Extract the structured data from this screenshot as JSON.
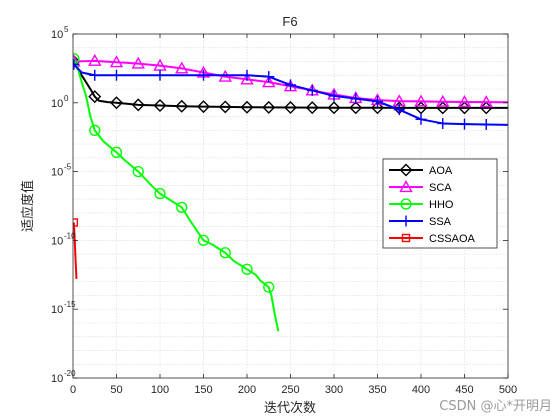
{
  "watermark": "CSDN @心*开明月",
  "chart_data": {
    "type": "line",
    "title": "F6",
    "xlabel": "迭代次数",
    "ylabel": "适应度值",
    "xlim": [
      0,
      500
    ],
    "ylim_log10": [
      -20,
      5
    ],
    "yscale": "log",
    "xticks": [
      0,
      50,
      100,
      150,
      200,
      250,
      300,
      350,
      400,
      450,
      500
    ],
    "yticks_exp": [
      -20,
      -15,
      -10,
      -5,
      0,
      5
    ],
    "ytick_base": "10",
    "grid": true,
    "legend_position": "right-middle",
    "series": [
      {
        "name": "AOA",
        "color": "#000000",
        "marker": "diamond",
        "marker_every": 25,
        "points": [
          [
            1,
            3
          ],
          [
            5,
            2.5
          ],
          [
            10,
            2.0
          ],
          [
            15,
            1.5
          ],
          [
            20,
            1.0
          ],
          [
            25,
            0.45
          ],
          [
            30,
            0.15
          ],
          [
            40,
            0.05
          ],
          [
            50,
            0.0
          ],
          [
            75,
            -0.15
          ],
          [
            100,
            -0.2
          ],
          [
            125,
            -0.25
          ],
          [
            150,
            -0.28
          ],
          [
            175,
            -0.3
          ],
          [
            200,
            -0.32
          ],
          [
            225,
            -0.33
          ],
          [
            250,
            -0.34
          ],
          [
            275,
            -0.35
          ],
          [
            300,
            -0.36
          ],
          [
            325,
            -0.36
          ],
          [
            350,
            -0.36
          ],
          [
            375,
            -0.37
          ],
          [
            400,
            -0.37
          ],
          [
            425,
            -0.37
          ],
          [
            450,
            -0.37
          ],
          [
            475,
            -0.37
          ],
          [
            500,
            -0.37
          ]
        ]
      },
      {
        "name": "SCA",
        "color": "#ff00ff",
        "marker": "triangle",
        "marker_every": 25,
        "points": [
          [
            1,
            3
          ],
          [
            25,
            3.05
          ],
          [
            50,
            2.95
          ],
          [
            75,
            2.85
          ],
          [
            100,
            2.7
          ],
          [
            125,
            2.5
          ],
          [
            150,
            2.2
          ],
          [
            175,
            1.9
          ],
          [
            200,
            1.7
          ],
          [
            225,
            1.5
          ],
          [
            250,
            1.2
          ],
          [
            275,
            0.9
          ],
          [
            300,
            0.6
          ],
          [
            325,
            0.35
          ],
          [
            350,
            0.2
          ],
          [
            375,
            0.12
          ],
          [
            400,
            0.1
          ],
          [
            425,
            0.08
          ],
          [
            450,
            0.06
          ],
          [
            475,
            0.05
          ],
          [
            500,
            0.04
          ]
        ]
      },
      {
        "name": "HHO",
        "color": "#00ff00",
        "marker": "circle",
        "marker_every": 25,
        "points": [
          [
            1,
            3.2
          ],
          [
            5,
            2.6
          ],
          [
            10,
            1.5
          ],
          [
            15,
            0.5
          ],
          [
            20,
            -1.0
          ],
          [
            25,
            -2.0
          ],
          [
            35,
            -2.8
          ],
          [
            50,
            -3.6
          ],
          [
            60,
            -4.2
          ],
          [
            75,
            -5.0
          ],
          [
            90,
            -6.0
          ],
          [
            100,
            -6.6
          ],
          [
            110,
            -7.0
          ],
          [
            125,
            -7.6
          ],
          [
            135,
            -8.6
          ],
          [
            150,
            -10.0
          ],
          [
            160,
            -10.3
          ],
          [
            175,
            -10.9
          ],
          [
            185,
            -11.5
          ],
          [
            200,
            -12.1
          ],
          [
            210,
            -12.5
          ],
          [
            215,
            -12.9
          ],
          [
            225,
            -13.4
          ],
          [
            228,
            -14.0
          ],
          [
            232,
            -15.4
          ],
          [
            236,
            -16.6
          ]
        ]
      },
      {
        "name": "SSA",
        "color": "#0000ff",
        "marker": "plus",
        "marker_every": 25,
        "points": [
          [
            1,
            2.8
          ],
          [
            10,
            2.2
          ],
          [
            25,
            2.0
          ],
          [
            50,
            2.0
          ],
          [
            100,
            2.0
          ],
          [
            150,
            2.0
          ],
          [
            200,
            2.0
          ],
          [
            225,
            1.9
          ],
          [
            250,
            1.3
          ],
          [
            275,
            0.9
          ],
          [
            300,
            0.5
          ],
          [
            325,
            0.3
          ],
          [
            350,
            0.1
          ],
          [
            375,
            -0.5
          ],
          [
            400,
            -1.2
          ],
          [
            425,
            -1.5
          ],
          [
            450,
            -1.55
          ],
          [
            475,
            -1.58
          ],
          [
            500,
            -1.6
          ]
        ]
      },
      {
        "name": "CSSAOA",
        "color": "#ff0000",
        "marker": "square",
        "marker_every": 1,
        "points": [
          [
            1,
            -8.7
          ],
          [
            2,
            -10.0
          ],
          [
            3,
            -11.5
          ],
          [
            4,
            -12.8
          ]
        ]
      }
    ]
  }
}
